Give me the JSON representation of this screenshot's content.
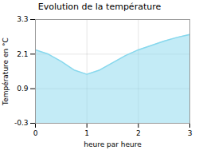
{
  "chart_data": {
    "type": "area",
    "title": "Evolution de la température",
    "xlabel": "heure par heure",
    "ylabel": "Température en °C",
    "x": [
      0,
      0.25,
      0.5,
      0.75,
      1.0,
      1.25,
      1.5,
      1.75,
      2.0,
      2.25,
      2.5,
      2.75,
      3.0
    ],
    "values": [
      2.25,
      2.1,
      1.85,
      1.55,
      1.4,
      1.55,
      1.8,
      2.05,
      2.25,
      2.4,
      2.55,
      2.68,
      2.78
    ],
    "color": "#88d8ed",
    "xlim": [
      0,
      3
    ],
    "xticks": [
      0,
      1,
      2,
      3
    ],
    "ylim": [
      -0.3,
      3.3
    ],
    "yticks": [
      -0.3,
      0.9,
      2.1,
      3.3
    ],
    "grid": true
  }
}
